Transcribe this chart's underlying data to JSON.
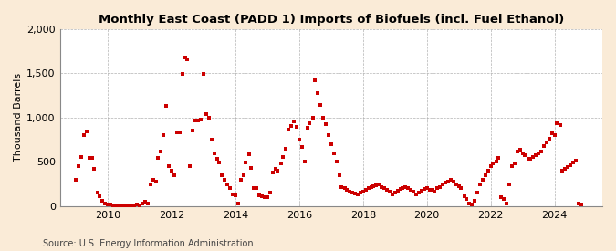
{
  "title": "Monthly East Coast (PADD 1) Imports of Biofuels (incl. Fuel Ethanol)",
  "ylabel": "Thousand Barrels",
  "source": "Source: U.S. Energy Information Administration",
  "fig_bg_color": "#faebd7",
  "plot_bg_color": "#ffffff",
  "marker_color": "#cc0000",
  "marker": "s",
  "marker_size": 3.5,
  "ylim": [
    0,
    2000
  ],
  "yticks": [
    0,
    500,
    1000,
    1500,
    2000
  ],
  "xlim_start": 2008.5,
  "xlim_end": 2025.5,
  "xticks": [
    2010,
    2012,
    2014,
    2016,
    2018,
    2020,
    2022,
    2024
  ],
  "data": [
    [
      2009.0,
      300
    ],
    [
      2009.08,
      450
    ],
    [
      2009.17,
      560
    ],
    [
      2009.25,
      800
    ],
    [
      2009.33,
      840
    ],
    [
      2009.42,
      550
    ],
    [
      2009.5,
      550
    ],
    [
      2009.58,
      420
    ],
    [
      2009.67,
      150
    ],
    [
      2009.75,
      110
    ],
    [
      2009.83,
      60
    ],
    [
      2009.92,
      30
    ],
    [
      2010.0,
      20
    ],
    [
      2010.08,
      15
    ],
    [
      2010.17,
      10
    ],
    [
      2010.25,
      5
    ],
    [
      2010.33,
      5
    ],
    [
      2010.42,
      5
    ],
    [
      2010.5,
      8
    ],
    [
      2010.58,
      8
    ],
    [
      2010.67,
      10
    ],
    [
      2010.75,
      10
    ],
    [
      2010.83,
      12
    ],
    [
      2010.92,
      15
    ],
    [
      2011.0,
      10
    ],
    [
      2011.08,
      30
    ],
    [
      2011.17,
      50
    ],
    [
      2011.25,
      30
    ],
    [
      2011.33,
      250
    ],
    [
      2011.42,
      300
    ],
    [
      2011.5,
      280
    ],
    [
      2011.58,
      550
    ],
    [
      2011.67,
      620
    ],
    [
      2011.75,
      800
    ],
    [
      2011.83,
      1130
    ],
    [
      2011.92,
      450
    ],
    [
      2012.0,
      400
    ],
    [
      2012.08,
      350
    ],
    [
      2012.17,
      830
    ],
    [
      2012.25,
      830
    ],
    [
      2012.33,
      1490
    ],
    [
      2012.42,
      1680
    ],
    [
      2012.5,
      1660
    ],
    [
      2012.58,
      450
    ],
    [
      2012.67,
      850
    ],
    [
      2012.75,
      970
    ],
    [
      2012.83,
      970
    ],
    [
      2012.92,
      980
    ],
    [
      2013.0,
      1490
    ],
    [
      2013.08,
      1040
    ],
    [
      2013.17,
      1000
    ],
    [
      2013.25,
      750
    ],
    [
      2013.33,
      600
    ],
    [
      2013.42,
      530
    ],
    [
      2013.5,
      490
    ],
    [
      2013.58,
      350
    ],
    [
      2013.67,
      300
    ],
    [
      2013.75,
      250
    ],
    [
      2013.83,
      200
    ],
    [
      2013.92,
      130
    ],
    [
      2014.0,
      120
    ],
    [
      2014.08,
      30
    ],
    [
      2014.17,
      300
    ],
    [
      2014.25,
      350
    ],
    [
      2014.33,
      490
    ],
    [
      2014.42,
      590
    ],
    [
      2014.5,
      430
    ],
    [
      2014.58,
      200
    ],
    [
      2014.67,
      200
    ],
    [
      2014.75,
      120
    ],
    [
      2014.83,
      110
    ],
    [
      2014.92,
      100
    ],
    [
      2015.0,
      100
    ],
    [
      2015.08,
      150
    ],
    [
      2015.17,
      380
    ],
    [
      2015.25,
      420
    ],
    [
      2015.33,
      400
    ],
    [
      2015.42,
      480
    ],
    [
      2015.5,
      560
    ],
    [
      2015.58,
      650
    ],
    [
      2015.67,
      870
    ],
    [
      2015.75,
      910
    ],
    [
      2015.83,
      960
    ],
    [
      2015.92,
      900
    ],
    [
      2016.0,
      750
    ],
    [
      2016.08,
      670
    ],
    [
      2016.17,
      500
    ],
    [
      2016.25,
      890
    ],
    [
      2016.33,
      940
    ],
    [
      2016.42,
      1000
    ],
    [
      2016.5,
      1420
    ],
    [
      2016.58,
      1280
    ],
    [
      2016.67,
      1140
    ],
    [
      2016.75,
      1000
    ],
    [
      2016.83,
      930
    ],
    [
      2016.92,
      800
    ],
    [
      2017.0,
      700
    ],
    [
      2017.08,
      600
    ],
    [
      2017.17,
      500
    ],
    [
      2017.25,
      350
    ],
    [
      2017.33,
      220
    ],
    [
      2017.42,
      200
    ],
    [
      2017.5,
      180
    ],
    [
      2017.58,
      160
    ],
    [
      2017.67,
      150
    ],
    [
      2017.75,
      140
    ],
    [
      2017.83,
      130
    ],
    [
      2017.92,
      150
    ],
    [
      2018.0,
      160
    ],
    [
      2018.08,
      180
    ],
    [
      2018.17,
      200
    ],
    [
      2018.25,
      220
    ],
    [
      2018.33,
      230
    ],
    [
      2018.42,
      240
    ],
    [
      2018.5,
      250
    ],
    [
      2018.58,
      220
    ],
    [
      2018.67,
      200
    ],
    [
      2018.75,
      180
    ],
    [
      2018.83,
      160
    ],
    [
      2018.92,
      130
    ],
    [
      2019.0,
      150
    ],
    [
      2019.08,
      170
    ],
    [
      2019.17,
      190
    ],
    [
      2019.25,
      200
    ],
    [
      2019.33,
      220
    ],
    [
      2019.42,
      200
    ],
    [
      2019.5,
      180
    ],
    [
      2019.58,
      160
    ],
    [
      2019.67,
      130
    ],
    [
      2019.75,
      150
    ],
    [
      2019.83,
      170
    ],
    [
      2019.92,
      190
    ],
    [
      2020.0,
      200
    ],
    [
      2020.08,
      180
    ],
    [
      2020.17,
      180
    ],
    [
      2020.25,
      160
    ],
    [
      2020.33,
      200
    ],
    [
      2020.42,
      220
    ],
    [
      2020.5,
      250
    ],
    [
      2020.58,
      270
    ],
    [
      2020.67,
      280
    ],
    [
      2020.75,
      300
    ],
    [
      2020.83,
      280
    ],
    [
      2020.92,
      250
    ],
    [
      2021.0,
      230
    ],
    [
      2021.08,
      200
    ],
    [
      2021.17,
      110
    ],
    [
      2021.25,
      80
    ],
    [
      2021.33,
      30
    ],
    [
      2021.42,
      15
    ],
    [
      2021.5,
      60
    ],
    [
      2021.58,
      150
    ],
    [
      2021.67,
      250
    ],
    [
      2021.75,
      300
    ],
    [
      2021.83,
      350
    ],
    [
      2021.92,
      400
    ],
    [
      2022.0,
      450
    ],
    [
      2022.08,
      480
    ],
    [
      2022.17,
      500
    ],
    [
      2022.25,
      550
    ],
    [
      2022.33,
      100
    ],
    [
      2022.42,
      80
    ],
    [
      2022.5,
      30
    ],
    [
      2022.58,
      250
    ],
    [
      2022.67,
      450
    ],
    [
      2022.75,
      480
    ],
    [
      2022.83,
      620
    ],
    [
      2022.92,
      640
    ],
    [
      2023.0,
      600
    ],
    [
      2023.08,
      580
    ],
    [
      2023.17,
      540
    ],
    [
      2023.25,
      540
    ],
    [
      2023.33,
      560
    ],
    [
      2023.42,
      580
    ],
    [
      2023.5,
      600
    ],
    [
      2023.58,
      620
    ],
    [
      2023.67,
      680
    ],
    [
      2023.75,
      720
    ],
    [
      2023.83,
      760
    ],
    [
      2023.92,
      820
    ],
    [
      2024.0,
      800
    ],
    [
      2024.08,
      940
    ],
    [
      2024.17,
      920
    ],
    [
      2024.25,
      400
    ],
    [
      2024.33,
      420
    ],
    [
      2024.42,
      440
    ],
    [
      2024.5,
      460
    ],
    [
      2024.58,
      490
    ],
    [
      2024.67,
      510
    ],
    [
      2024.75,
      30
    ],
    [
      2024.83,
      20
    ]
  ]
}
